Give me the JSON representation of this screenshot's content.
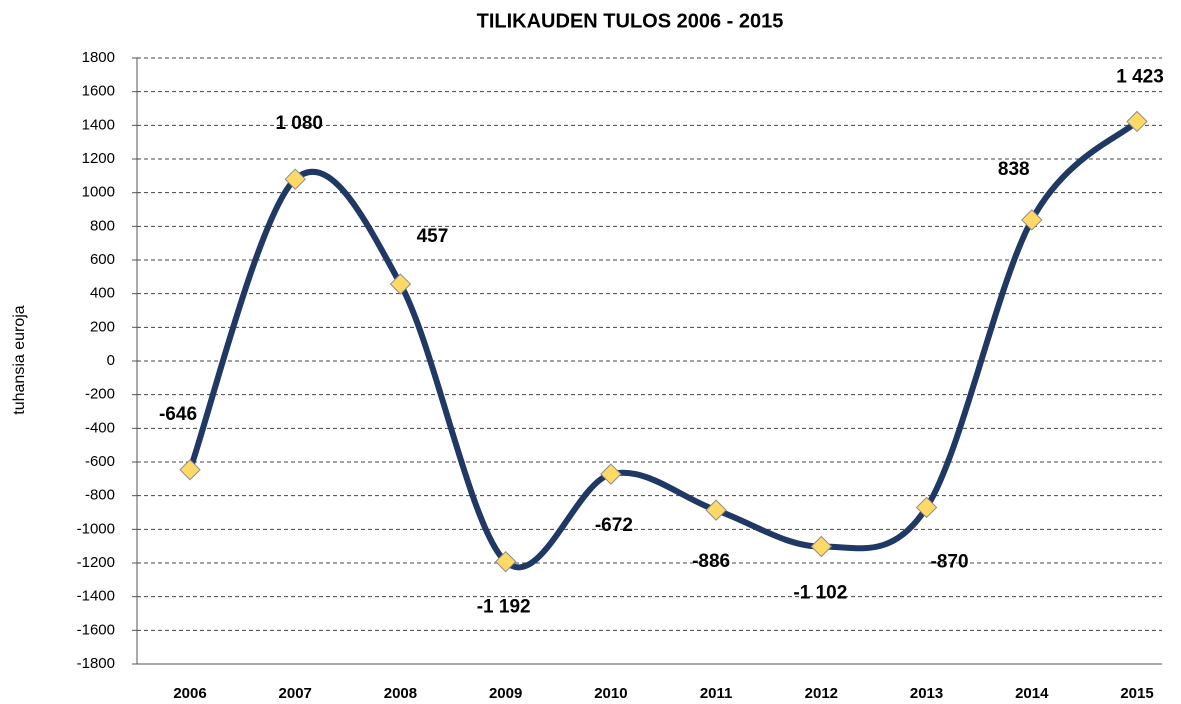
{
  "chart_data": {
    "type": "line",
    "title": "TILIKAUDEN  TULOS 2006 - 2015",
    "y_label": "tuhansia euroja",
    "categories": [
      "2006",
      "2007",
      "2008",
      "2009",
      "2010",
      "2011",
      "2012",
      "2013",
      "2014",
      "2015"
    ],
    "series": [
      {
        "name": "Tulos",
        "color": "#1f3864",
        "values": [
          -646,
          1080,
          457,
          -1192,
          -672,
          -886,
          -1102,
          -870,
          838,
          1423
        ],
        "value_labels": [
          "-646",
          "1 080",
          "457",
          "-1 192",
          "-672",
          "-886",
          "-1 102",
          "-870",
          "838",
          "1 423"
        ]
      }
    ],
    "marker_color": "#ffd966",
    "ylim": [
      -1800,
      1800
    ],
    "yticks": [
      -1800,
      -1600,
      -1400,
      -1200,
      -1000,
      -800,
      -600,
      -400,
      -200,
      0,
      200,
      400,
      600,
      800,
      1000,
      1200,
      1400,
      1600,
      1800
    ],
    "grid": true
  }
}
